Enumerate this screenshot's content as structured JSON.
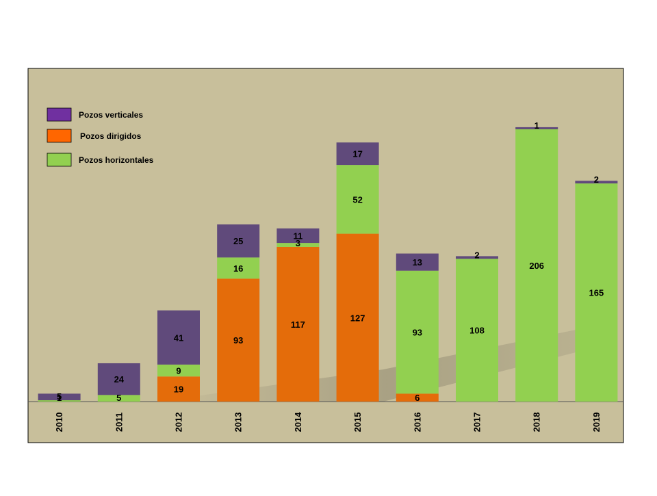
{
  "chart_data": {
    "type": "bar",
    "stacked": true,
    "title": "",
    "xlabel": "",
    "ylabel": "",
    "categories": [
      "2010",
      "2011",
      "2012",
      "2013",
      "2014",
      "2015",
      "2016",
      "2017",
      "2018",
      "2019"
    ],
    "series": [
      {
        "name": "Pozos dirigidos",
        "color": "#E46C0A",
        "values": [
          0,
          0,
          19,
          93,
          117,
          127,
          6,
          0,
          0,
          0
        ],
        "labels": [
          "",
          "",
          "19",
          "93",
          "117",
          "127",
          "6",
          "",
          "",
          ""
        ]
      },
      {
        "name": "Pozos horizontales",
        "color": "#92D050",
        "values": [
          1,
          5,
          9,
          16,
          3,
          52,
          93,
          108,
          206,
          165
        ],
        "labels": [
          "1",
          "5",
          "9",
          "16",
          "3",
          "52",
          "93",
          "108",
          "206",
          "165"
        ]
      },
      {
        "name": "Pozos verticales",
        "color": "#604A7B",
        "values": [
          5,
          24,
          41,
          25,
          11,
          17,
          13,
          2,
          1,
          2
        ],
        "labels": [
          "5",
          "24",
          "41",
          "25",
          "11",
          "17",
          "13",
          "2",
          "1",
          "2"
        ]
      }
    ],
    "legend": {
      "placement": "top-left",
      "entries": [
        {
          "name": "Pozos verticales",
          "color": "#7030A0"
        },
        {
          "name": "Pozos dirigidos",
          "color": "#FF6600"
        },
        {
          "name": "Pozos horizontales",
          "color": "#92D050"
        }
      ]
    },
    "ylim": [
      0,
      250
    ],
    "grid": false,
    "colors": {
      "plot_background": "#C8BF9B",
      "border": "#000000"
    }
  }
}
